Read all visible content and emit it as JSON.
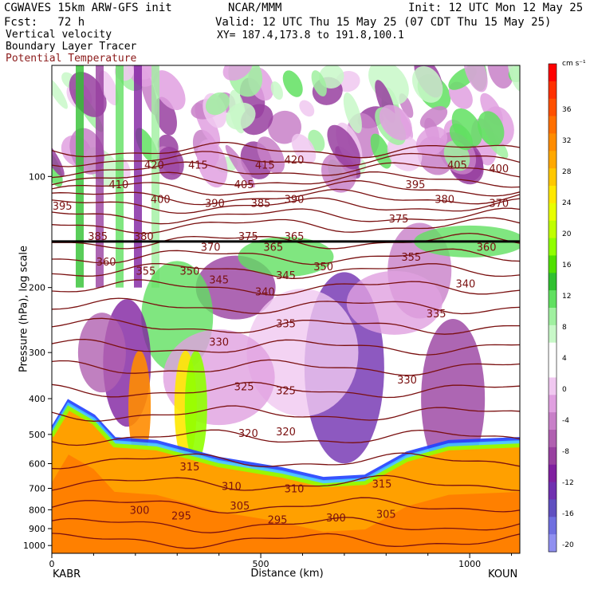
{
  "header": {
    "model": "CGWAVES 15km ARW-GFS init",
    "center": "NCAR/MMM",
    "init": "Init: 12 UTC Mon 12 May 25",
    "fcst": "Fcst:   72 h",
    "valid": "Valid: 12 UTC Thu 15 May 25 (07 CDT Thu 15 May 25)",
    "xy": "XY= 187.4,173.8 to 191.8,100.1"
  },
  "overlays": [
    {
      "label": "Vertical velocity",
      "color": "#000000"
    },
    {
      "label": "Boundary Layer Tracer",
      "color": "#000000"
    },
    {
      "label": "Potential Temperature",
      "color": "#8b1a1a"
    }
  ],
  "chart_data": {
    "type": "heatmap",
    "title": "",
    "xlabel": "Distance (km)",
    "ylabel": "Pressure (hPa), log scale",
    "xlim": [
      0,
      1120
    ],
    "ylim": [
      1050,
      50
    ],
    "y_scale": "log",
    "x_ticks": [
      0,
      500,
      1000
    ],
    "y_ticks": [
      100,
      200,
      300,
      400,
      500,
      600,
      700,
      800,
      900,
      1000
    ],
    "endpoints": {
      "left": "KABR",
      "right": "KOUN"
    },
    "colorbar": {
      "unit": "cm s⁻¹",
      "labels": [
        36,
        32,
        28,
        24,
        20,
        16,
        12,
        8,
        4,
        0,
        -4,
        -8,
        -12,
        -16,
        -20
      ],
      "colors": [
        "#ff0000",
        "#ff3000",
        "#ff5000",
        "#ff7000",
        "#ff8c00",
        "#ffa800",
        "#ffc800",
        "#ffe800",
        "#e8ff00",
        "#c0ff00",
        "#90ff00",
        "#50e000",
        "#30c030",
        "#60e060",
        "#a0f0a0",
        "#c8f8c8",
        "#ffffff",
        "#ffffff",
        "#f0c8f0",
        "#e0a0e0",
        "#c880c8",
        "#b060b0",
        "#9840a0",
        "#8020a0",
        "#7030b0",
        "#6050c0",
        "#7070e0",
        "#9090f0"
      ]
    },
    "tracer_level_hPa": 150,
    "theta_labels": [
      {
        "v": 420,
        "x": 245,
        "p": 93
      },
      {
        "v": 415,
        "x": 350,
        "p": 93
      },
      {
        "v": 415,
        "x": 510,
        "p": 93
      },
      {
        "v": 420,
        "x": 580,
        "p": 90
      },
      {
        "v": 405,
        "x": 970,
        "p": 93
      },
      {
        "v": 400,
        "x": 1070,
        "p": 95
      },
      {
        "v": 410,
        "x": 160,
        "p": 105
      },
      {
        "v": 405,
        "x": 460,
        "p": 105
      },
      {
        "v": 395,
        "x": 870,
        "p": 105
      },
      {
        "v": 400,
        "x": 260,
        "p": 115
      },
      {
        "v": 390,
        "x": 390,
        "p": 118
      },
      {
        "v": 385,
        "x": 500,
        "p": 118
      },
      {
        "v": 390,
        "x": 580,
        "p": 115
      },
      {
        "v": 380,
        "x": 940,
        "p": 115
      },
      {
        "v": 370,
        "x": 1070,
        "p": 118
      },
      {
        "v": 395,
        "x": 25,
        "p": 120
      },
      {
        "v": 375,
        "x": 830,
        "p": 130
      },
      {
        "v": 385,
        "x": 110,
        "p": 145
      },
      {
        "v": 380,
        "x": 220,
        "p": 145
      },
      {
        "v": 375,
        "x": 470,
        "p": 145
      },
      {
        "v": 365,
        "x": 580,
        "p": 145
      },
      {
        "v": 370,
        "x": 380,
        "p": 155
      },
      {
        "v": 365,
        "x": 530,
        "p": 155
      },
      {
        "v": 360,
        "x": 1040,
        "p": 155
      },
      {
        "v": 350,
        "x": 650,
        "p": 175
      },
      {
        "v": 355,
        "x": 860,
        "p": 165
      },
      {
        "v": 360,
        "x": 130,
        "p": 170
      },
      {
        "v": 355,
        "x": 225,
        "p": 180
      },
      {
        "v": 350,
        "x": 330,
        "p": 180
      },
      {
        "v": 345,
        "x": 400,
        "p": 190
      },
      {
        "v": 345,
        "x": 560,
        "p": 185
      },
      {
        "v": 340,
        "x": 510,
        "p": 205
      },
      {
        "v": 340,
        "x": 990,
        "p": 195
      },
      {
        "v": 335,
        "x": 560,
        "p": 250
      },
      {
        "v": 335,
        "x": 920,
        "p": 235
      },
      {
        "v": 330,
        "x": 400,
        "p": 280
      },
      {
        "v": 330,
        "x": 850,
        "p": 355
      },
      {
        "v": 325,
        "x": 460,
        "p": 370
      },
      {
        "v": 325,
        "x": 560,
        "p": 380
      },
      {
        "v": 320,
        "x": 470,
        "p": 495
      },
      {
        "v": 320,
        "x": 560,
        "p": 490
      },
      {
        "v": 315,
        "x": 330,
        "p": 610
      },
      {
        "v": 315,
        "x": 790,
        "p": 680
      },
      {
        "v": 310,
        "x": 430,
        "p": 690
      },
      {
        "v": 310,
        "x": 580,
        "p": 700
      },
      {
        "v": 300,
        "x": 210,
        "p": 800
      },
      {
        "v": 295,
        "x": 310,
        "p": 830
      },
      {
        "v": 305,
        "x": 450,
        "p": 780
      },
      {
        "v": 295,
        "x": 540,
        "p": 850
      },
      {
        "v": 300,
        "x": 680,
        "p": 840
      },
      {
        "v": 305,
        "x": 800,
        "p": 820
      }
    ]
  }
}
